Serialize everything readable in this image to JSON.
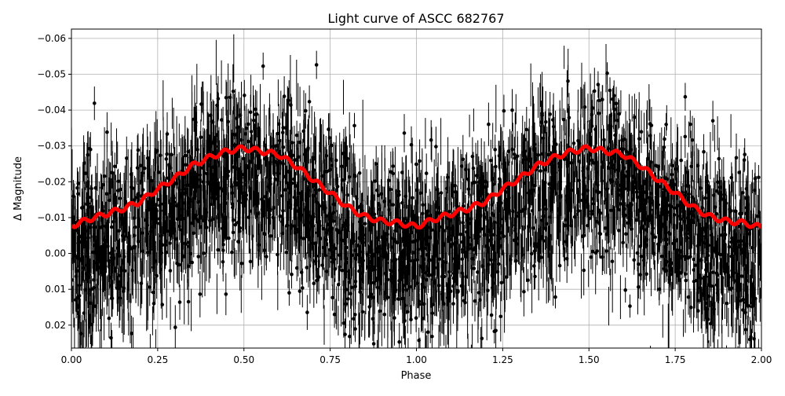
{
  "chart_data": {
    "type": "scatter",
    "title": "Light curve of ASCC 682767",
    "xlabel": "Phase",
    "ylabel": "Δ Magnitude",
    "xlim": [
      0,
      2
    ],
    "ylim": [
      0.0264,
      -0.0626
    ],
    "y_inverted": true,
    "grid": true,
    "xticks": [
      "0.00",
      "0.25",
      "0.50",
      "0.75",
      "1.00",
      "1.25",
      "1.50",
      "1.75",
      "2.00"
    ],
    "xtick_values": [
      0,
      0.25,
      0.5,
      0.75,
      1,
      1.25,
      1.5,
      1.75,
      2
    ],
    "yticks": [
      "−0.06",
      "−0.05",
      "−0.04",
      "−0.03",
      "−0.02",
      "−0.01",
      "0.00",
      "0.01",
      "0.02"
    ],
    "ytick_values": [
      -0.06,
      -0.05,
      -0.04,
      -0.03,
      -0.02,
      -0.01,
      0,
      0.01,
      0.02
    ],
    "observations": {
      "color": "#000000",
      "marker": "circle",
      "error_bars": true,
      "spread_range": [
        -0.062,
        0.026
      ]
    },
    "model_curve": {
      "color": "#ff0000",
      "phase": [
        0,
        0.05,
        0.1,
        0.15,
        0.2,
        0.25,
        0.3,
        0.35,
        0.4,
        0.45,
        0.5,
        0.55,
        0.6,
        0.65,
        0.7,
        0.75,
        0.8,
        0.85,
        0.9,
        0.95,
        1.0,
        1.05,
        1.1,
        1.15,
        1.2,
        1.25,
        1.3,
        1.35,
        1.4,
        1.45,
        1.5,
        1.55,
        1.6,
        1.65,
        1.7,
        1.75,
        1.8,
        1.85,
        1.9,
        1.95,
        2.0
      ],
      "delta_mag": [
        -0.0077,
        -0.0095,
        -0.011,
        -0.0125,
        -0.0145,
        -0.018,
        -0.021,
        -0.0245,
        -0.0268,
        -0.0285,
        -0.0294,
        -0.0285,
        -0.0276,
        -0.0245,
        -0.0206,
        -0.0169,
        -0.013,
        -0.0103,
        -0.009,
        -0.0085,
        -0.0075,
        -0.0095,
        -0.011,
        -0.0125,
        -0.0145,
        -0.018,
        -0.021,
        -0.0245,
        -0.0268,
        -0.0285,
        -0.0294,
        -0.0285,
        -0.0276,
        -0.0245,
        -0.0206,
        -0.0169,
        -0.013,
        -0.0103,
        -0.009,
        -0.0085,
        -0.0072
      ]
    }
  }
}
